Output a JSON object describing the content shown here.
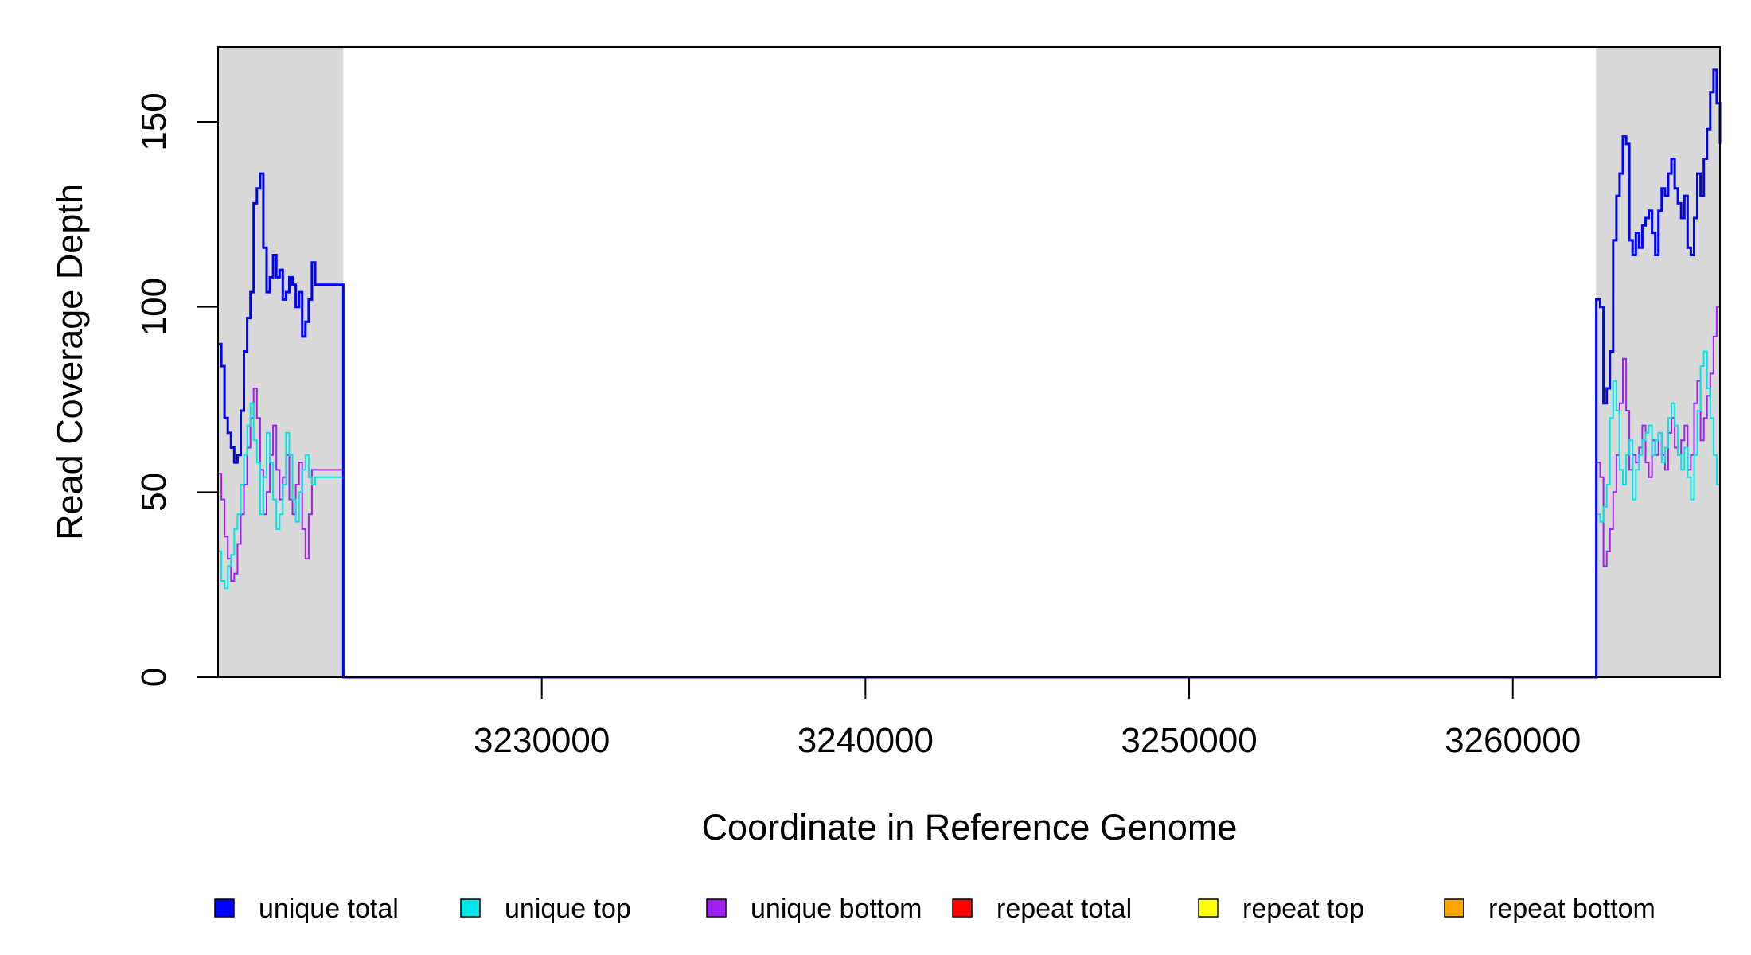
{
  "chart_data": {
    "type": "line",
    "title": "",
    "xlabel": "Coordinate in Reference Genome",
    "ylabel": "Read Coverage Depth",
    "xlim": [
      3220000,
      3266400
    ],
    "ylim": [
      0,
      170
    ],
    "x_ticks": [
      {
        "value": 3230000,
        "label": "3230000"
      },
      {
        "value": 3240000,
        "label": "3240000"
      },
      {
        "value": 3250000,
        "label": "3250000"
      },
      {
        "value": 3260000,
        "label": "3260000"
      }
    ],
    "y_ticks": [
      {
        "value": 0,
        "label": "0"
      },
      {
        "value": 50,
        "label": "50"
      },
      {
        "value": 100,
        "label": "100"
      },
      {
        "value": 150,
        "label": "150"
      }
    ],
    "shaded_regions": [
      {
        "x_start": 3220000,
        "x_end": 3223870,
        "color": "#d9d9d9"
      },
      {
        "x_start": 3262570,
        "x_end": 3266400,
        "color": "#d9d9d9"
      }
    ],
    "grid": false,
    "legend_position": "bottom",
    "series": [
      {
        "name": "unique total",
        "color": "#0000ff",
        "width": 3,
        "x": [
          3220000,
          3220100,
          3220200,
          3220300,
          3220400,
          3220500,
          3220600,
          3220700,
          3220800,
          3220900,
          3221000,
          3221100,
          3221200,
          3221300,
          3221400,
          3221500,
          3221600,
          3221700,
          3221800,
          3221900,
          3222000,
          3222100,
          3222200,
          3222300,
          3222400,
          3222500,
          3222600,
          3222700,
          3222800,
          3222900,
          3223000,
          3223100,
          3223200,
          3223300,
          3223400,
          3223500,
          3223600,
          3223700,
          3223800,
          3223860,
          3223870,
          3262570,
          3262580,
          3262700,
          3262800,
          3262900,
          3263000,
          3263100,
          3263200,
          3263300,
          3263400,
          3263500,
          3263600,
          3263700,
          3263800,
          3263900,
          3264000,
          3264100,
          3264200,
          3264300,
          3264400,
          3264500,
          3264600,
          3264700,
          3264800,
          3264900,
          3265000,
          3265100,
          3265200,
          3265300,
          3265400,
          3265500,
          3265600,
          3265700,
          3265800,
          3265900,
          3266000,
          3266100,
          3266200,
          3266300,
          3266400
        ],
        "values": [
          90,
          84,
          70,
          66,
          62,
          58,
          60,
          72,
          88,
          97,
          104,
          128,
          132,
          136,
          116,
          104,
          108,
          114,
          108,
          110,
          102,
          104,
          108,
          106,
          100,
          104,
          92,
          96,
          102,
          112,
          106,
          106,
          106,
          106,
          106,
          106,
          106,
          106,
          106,
          106,
          0,
          0,
          102,
          100,
          74,
          78,
          88,
          118,
          130,
          136,
          146,
          144,
          118,
          114,
          120,
          116,
          122,
          124,
          126,
          120,
          114,
          126,
          132,
          130,
          136,
          140,
          132,
          128,
          124,
          130,
          116,
          114,
          124,
          136,
          130,
          140,
          148,
          158,
          164,
          155,
          144
        ]
      },
      {
        "name": "unique top",
        "color": "#00e5e5",
        "width": 2,
        "x": [
          3220000,
          3220100,
          3220200,
          3220300,
          3220400,
          3220500,
          3220600,
          3220700,
          3220800,
          3220900,
          3221000,
          3221100,
          3221200,
          3221300,
          3221400,
          3221500,
          3221600,
          3221700,
          3221800,
          3221900,
          3222000,
          3222100,
          3222200,
          3222300,
          3222400,
          3222500,
          3222600,
          3222700,
          3222800,
          3222900,
          3223000,
          3223100,
          3223200,
          3223300,
          3223400,
          3223500,
          3223600,
          3223700,
          3223800,
          3223860,
          3223870,
          3262570,
          3262580,
          3262700,
          3262800,
          3262900,
          3263000,
          3263100,
          3263200,
          3263300,
          3263400,
          3263500,
          3263600,
          3263700,
          3263800,
          3263900,
          3264000,
          3264100,
          3264200,
          3264300,
          3264400,
          3264500,
          3264600,
          3264700,
          3264800,
          3264900,
          3265000,
          3265100,
          3265200,
          3265300,
          3265400,
          3265500,
          3265600,
          3265700,
          3265800,
          3265900,
          3266000,
          3266100,
          3266200,
          3266300,
          3266400
        ],
        "values": [
          34,
          26,
          24,
          30,
          33,
          40,
          44,
          52,
          60,
          68,
          74,
          64,
          58,
          44,
          54,
          66,
          58,
          48,
          40,
          44,
          52,
          66,
          60,
          48,
          42,
          50,
          56,
          60,
          54,
          52,
          54,
          54,
          54,
          54,
          54,
          54,
          54,
          54,
          54,
          54,
          0,
          0,
          44,
          42,
          46,
          52,
          70,
          80,
          72,
          56,
          52,
          60,
          64,
          48,
          56,
          60,
          64,
          66,
          68,
          60,
          64,
          66,
          58,
          62,
          70,
          74,
          68,
          60,
          56,
          62,
          54,
          48,
          60,
          72,
          84,
          88,
          78,
          70,
          60,
          52,
          48
        ]
      },
      {
        "name": "unique bottom",
        "color": "#a020f0",
        "width": 2,
        "x": [
          3220000,
          3220100,
          3220200,
          3220300,
          3220400,
          3220500,
          3220600,
          3220700,
          3220800,
          3220900,
          3221000,
          3221100,
          3221200,
          3221300,
          3221400,
          3221500,
          3221600,
          3221700,
          3221800,
          3221900,
          3222000,
          3222100,
          3222200,
          3222300,
          3222400,
          3222500,
          3222600,
          3222700,
          3222800,
          3222900,
          3223000,
          3223100,
          3223200,
          3223300,
          3223400,
          3223500,
          3223600,
          3223700,
          3223800,
          3223860,
          3223870,
          3262570,
          3262580,
          3262700,
          3262800,
          3262900,
          3263000,
          3263100,
          3263200,
          3263300,
          3263400,
          3263500,
          3263600,
          3263700,
          3263800,
          3263900,
          3264000,
          3264100,
          3264200,
          3264300,
          3264400,
          3264500,
          3264600,
          3264700,
          3264800,
          3264900,
          3265000,
          3265100,
          3265200,
          3265300,
          3265400,
          3265500,
          3265600,
          3265700,
          3265800,
          3265900,
          3266000,
          3266100,
          3266200,
          3266300,
          3266400
        ],
        "values": [
          55,
          48,
          38,
          32,
          26,
          28,
          36,
          44,
          52,
          62,
          70,
          78,
          70,
          56,
          44,
          50,
          60,
          68,
          56,
          48,
          54,
          60,
          48,
          44,
          52,
          58,
          40,
          32,
          44,
          56,
          56,
          56,
          56,
          56,
          56,
          56,
          56,
          56,
          56,
          56,
          0,
          0,
          58,
          54,
          30,
          34,
          40,
          50,
          60,
          74,
          86,
          72,
          56,
          60,
          58,
          62,
          68,
          58,
          54,
          64,
          60,
          66,
          60,
          56,
          66,
          70,
          62,
          60,
          64,
          68,
          56,
          60,
          74,
          80,
          64,
          70,
          76,
          82,
          92,
          100,
          103
        ]
      },
      {
        "name": "repeat total",
        "color": "#ff0000",
        "width": 2,
        "x": [
          3220000,
          3266400
        ],
        "values": [
          0,
          0
        ]
      },
      {
        "name": "repeat top",
        "color": "#ffff00",
        "width": 2,
        "x": [
          3220000,
          3266400
        ],
        "values": [
          0,
          0
        ]
      },
      {
        "name": "repeat bottom",
        "color": "#ffa500",
        "width": 2,
        "x": [
          3220000,
          3266400
        ],
        "values": [
          0,
          0
        ]
      }
    ]
  }
}
